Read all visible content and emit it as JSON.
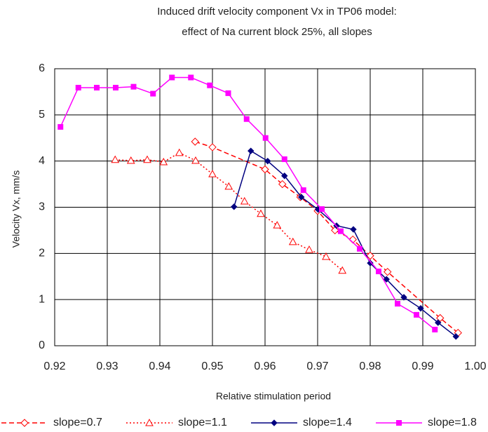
{
  "chart_data": {
    "type": "line",
    "title": "Induced drift velocity component Vx in TP06 model:",
    "subtitle": "effect of Na current block 25%, all slopes",
    "x_label": "Relative stimulation period",
    "y_label": "Velocity Vx, mm/s",
    "xlim": [
      0.92,
      1.0
    ],
    "ylim": [
      0,
      6
    ],
    "xticks": [
      0.92,
      0.93,
      0.94,
      0.95,
      0.96,
      0.97,
      0.98,
      0.99,
      {
        "value": 1.0,
        "label": "1.00"
      }
    ],
    "yticks": [
      0,
      1,
      2,
      3,
      4,
      5,
      6
    ],
    "grid": true,
    "legend": "bottom",
    "series": [
      {
        "name": "slope=0.7",
        "color": "#ff0000",
        "dash": "dashed",
        "marker": "diamond-open",
        "x": [
          0.9467,
          0.95,
          0.96,
          0.9633,
          0.9667,
          0.97,
          0.9733,
          0.9767,
          0.98,
          0.9833,
          0.9933,
          0.9967
        ],
        "values": [
          4.42,
          4.3,
          3.82,
          3.5,
          3.22,
          2.92,
          2.5,
          2.3,
          1.95,
          1.6,
          0.6,
          0.28
        ]
      },
      {
        "name": "slope=1.1",
        "color": "#ff0000",
        "dash": "dotted",
        "marker": "triangle-open",
        "x": [
          0.9315,
          0.9345,
          0.9376,
          0.9407,
          0.9437,
          0.9468,
          0.95,
          0.9531,
          0.9561,
          0.9592,
          0.9623,
          0.9653,
          0.9684,
          0.9716,
          0.9747
        ],
        "values": [
          4.03,
          4.01,
          4.03,
          3.98,
          4.18,
          4.01,
          3.72,
          3.45,
          3.13,
          2.86,
          2.61,
          2.25,
          2.08,
          1.93,
          1.63
        ]
      },
      {
        "name": "slope=1.4",
        "color": "#000080",
        "dash": "solid",
        "marker": "diamond",
        "x": [
          0.9541,
          0.9573,
          0.9605,
          0.9637,
          0.9669,
          0.9701,
          0.9736,
          0.9768,
          0.98,
          0.9831,
          0.9864,
          0.9896,
          0.9929,
          0.9963
        ],
        "values": [
          3.01,
          4.22,
          4.0,
          3.68,
          3.22,
          2.95,
          2.6,
          2.52,
          1.79,
          1.44,
          1.05,
          0.81,
          0.5,
          0.2
        ]
      },
      {
        "name": "slope=1.8",
        "color": "#ff00ff",
        "dash": "solid",
        "marker": "square",
        "x": [
          0.9211,
          0.9245,
          0.928,
          0.9316,
          0.935,
          0.9387,
          0.9423,
          0.9459,
          0.9495,
          0.953,
          0.9565,
          0.9601,
          0.9637,
          0.9673,
          0.9708,
          0.9744,
          0.978,
          0.9816,
          0.9852,
          0.9888,
          0.9923
        ],
        "values": [
          4.74,
          5.59,
          5.59,
          5.59,
          5.61,
          5.46,
          5.81,
          5.81,
          5.64,
          5.47,
          4.91,
          4.5,
          4.04,
          3.37,
          2.96,
          2.48,
          2.1,
          1.61,
          0.91,
          0.67,
          0.35
        ]
      }
    ]
  }
}
